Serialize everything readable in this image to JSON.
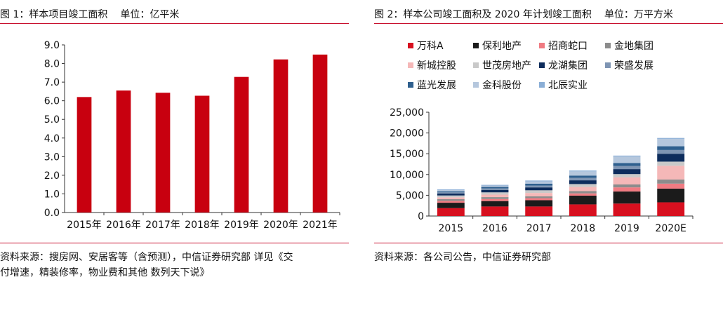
{
  "panel1": {
    "title": "图 1：样本项目竣工面积",
    "unit": "单位：亿平米",
    "source": "资料来源：搜房网、安居客等（含预测），中信证券研究部    详见《交付增速，精装修率，物业费和其他 数列天下说》"
  },
  "panel2": {
    "title": "图 2：样本公司竣工面积及 2020 年计划竣工面积",
    "unit": "单位：万平方米",
    "source": "资料来源：各公司公告，中信证券研究部"
  },
  "chart_data": [
    {
      "type": "bar",
      "title": "图 1：样本项目竣工面积",
      "unit": "单位：亿平米",
      "categories": [
        "2015年",
        "2016年",
        "2017年",
        "2018年",
        "2019年",
        "2020年",
        "2021年"
      ],
      "values": [
        6.2,
        6.55,
        6.43,
        6.27,
        7.28,
        8.22,
        8.48
      ],
      "ylim": [
        0,
        9
      ],
      "yticks": [
        "0.0",
        "1.0",
        "2.0",
        "3.0",
        "4.0",
        "5.0",
        "6.0",
        "7.0",
        "8.0",
        "9.0"
      ],
      "grid": false,
      "colors": {
        "bar": "#c8000f"
      }
    },
    {
      "type": "bar",
      "stacked": true,
      "title": "图 2：样本公司竣工面积及 2020 年计划竣工面积",
      "unit": "单位：万平方米",
      "categories": [
        "2015",
        "2016",
        "2017",
        "2018",
        "2019",
        "2020E"
      ],
      "ylim": [
        0,
        25000
      ],
      "yticks": [
        "0",
        "5,000",
        "10,000",
        "15,000",
        "20,000",
        "25,000"
      ],
      "legend_position": "top",
      "grid": false,
      "series": [
        {
          "name": "万科A",
          "color": "#d7101f",
          "values": [
            1900,
            2300,
            2300,
            2800,
            3000,
            3300
          ]
        },
        {
          "name": "保利地产",
          "color": "#1b1b1b",
          "values": [
            1300,
            1300,
            1500,
            2100,
            2900,
            3300
          ]
        },
        {
          "name": "招商蛇口",
          "color": "#f07b82",
          "values": [
            450,
            500,
            500,
            550,
            1000,
            1200
          ]
        },
        {
          "name": "金地集团",
          "color": "#8c8c8c",
          "values": [
            400,
            450,
            450,
            550,
            700,
            1000
          ]
        },
        {
          "name": "新城控股",
          "color": "#f5b8b8",
          "values": [
            450,
            600,
            800,
            1000,
            1700,
            3300
          ]
        },
        {
          "name": "世茂房地产",
          "color": "#c9c9c9",
          "values": [
            450,
            550,
            650,
            700,
            800,
            1000
          ]
        },
        {
          "name": "龙湖集团",
          "color": "#0d2c5c",
          "values": [
            450,
            600,
            700,
            900,
            1200,
            1900
          ]
        },
        {
          "name": "荣盛发展",
          "color": "#7e95b3",
          "values": [
            300,
            350,
            450,
            600,
            750,
            900
          ]
        },
        {
          "name": "蓝光发展",
          "color": "#2e5f8e",
          "values": [
            250,
            350,
            450,
            550,
            700,
            900
          ]
        },
        {
          "name": "金科股份",
          "color": "#b5c7dd",
          "values": [
            300,
            350,
            550,
            1000,
            1600,
            1800
          ]
        },
        {
          "name": "北辰实业",
          "color": "#8aaed6",
          "values": [
            150,
            150,
            200,
            200,
            200,
            200
          ]
        }
      ]
    }
  ]
}
